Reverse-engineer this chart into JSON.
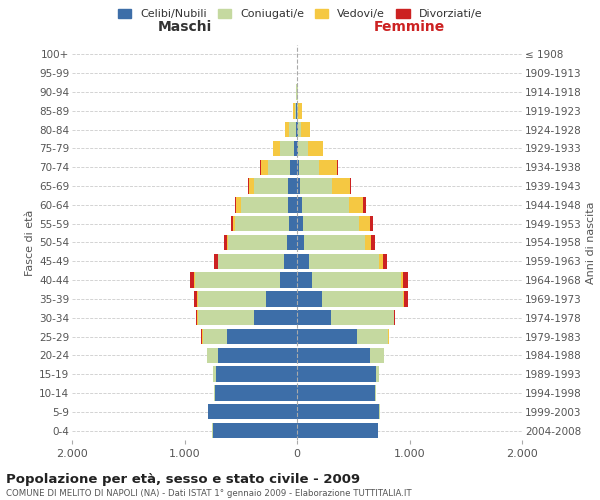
{
  "age_groups": [
    "0-4",
    "5-9",
    "10-14",
    "15-19",
    "20-24",
    "25-29",
    "30-34",
    "35-39",
    "40-44",
    "45-49",
    "50-54",
    "55-59",
    "60-64",
    "65-69",
    "70-74",
    "75-79",
    "80-84",
    "85-89",
    "90-94",
    "95-99",
    "100+"
  ],
  "birth_years": [
    "2004-2008",
    "1999-2003",
    "1994-1998",
    "1989-1993",
    "1984-1988",
    "1979-1983",
    "1974-1978",
    "1969-1973",
    "1964-1968",
    "1959-1963",
    "1954-1958",
    "1949-1953",
    "1944-1948",
    "1939-1943",
    "1934-1938",
    "1929-1933",
    "1924-1928",
    "1919-1923",
    "1914-1918",
    "1909-1913",
    "≤ 1908"
  ],
  "male": {
    "celibi": [
      750,
      790,
      730,
      720,
      700,
      620,
      380,
      280,
      150,
      120,
      90,
      70,
      80,
      80,
      60,
      30,
      10,
      5,
      2,
      0,
      0
    ],
    "coniugati": [
      2,
      5,
      10,
      30,
      100,
      220,
      500,
      600,
      760,
      580,
      520,
      480,
      420,
      300,
      200,
      120,
      60,
      15,
      5,
      0,
      0
    ],
    "vedovi": [
      0,
      0,
      0,
      0,
      2,
      5,
      5,
      5,
      5,
      5,
      10,
      20,
      40,
      50,
      60,
      60,
      40,
      15,
      5,
      0,
      0
    ],
    "divorziati": [
      0,
      0,
      0,
      0,
      2,
      5,
      10,
      30,
      35,
      35,
      30,
      20,
      15,
      10,
      5,
      5,
      0,
      0,
      0,
      0,
      0
    ]
  },
  "female": {
    "nubili": [
      720,
      730,
      690,
      700,
      650,
      530,
      300,
      220,
      130,
      110,
      60,
      50,
      40,
      30,
      15,
      10,
      5,
      3,
      2,
      0,
      0
    ],
    "coniugate": [
      2,
      5,
      10,
      30,
      120,
      280,
      560,
      720,
      790,
      620,
      540,
      500,
      420,
      280,
      180,
      90,
      30,
      10,
      3,
      0,
      0
    ],
    "vedove": [
      0,
      0,
      0,
      0,
      2,
      5,
      5,
      10,
      20,
      30,
      60,
      100,
      130,
      160,
      160,
      130,
      80,
      30,
      8,
      0,
      0
    ],
    "divorziate": [
      0,
      0,
      0,
      0,
      2,
      5,
      10,
      35,
      50,
      40,
      35,
      25,
      20,
      10,
      5,
      5,
      0,
      0,
      0,
      0,
      0
    ]
  },
  "colors": {
    "celibi": "#3d6ea8",
    "coniugati": "#c5d9a0",
    "vedovi": "#f5c842",
    "divorziati": "#cc2222"
  },
  "title": "Popolazione per età, sesso e stato civile - 2009",
  "subtitle": "COMUNE DI MELITO DI NAPOLI (NA) - Dati ISTAT 1° gennaio 2009 - Elaborazione TUTTITALIA.IT",
  "xlabel_left": "Maschi",
  "xlabel_right": "Femmine",
  "ylabel_left": "Fasce di età",
  "ylabel_right": "Anni di nascita",
  "legend_labels": [
    "Celibi/Nubili",
    "Coniugati/e",
    "Vedovi/e",
    "Divorziati/e"
  ],
  "xlim": 2000,
  "xticks": [
    -2000,
    -1000,
    0,
    1000,
    2000
  ],
  "xticklabels": [
    "2.000",
    "1.000",
    "0",
    "1.000",
    "2.000"
  ],
  "bg_color": "#ffffff",
  "grid_color": "#cccccc"
}
